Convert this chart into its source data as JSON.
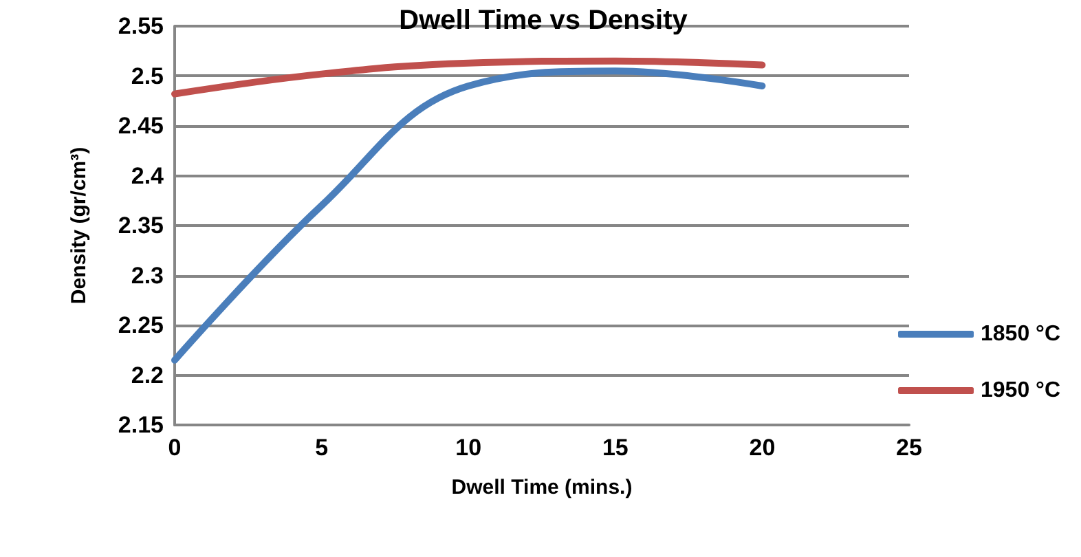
{
  "chart_data": {
    "type": "line",
    "title": "Dwell Time vs Density",
    "xlabel": "Dwell Time (mins.)",
    "ylabel": "Density (gr/cm³)",
    "x": [
      0,
      5,
      10,
      15,
      20
    ],
    "series": [
      {
        "name": "1850 °C",
        "color": "#4a7ebb",
        "values": [
          2.215,
          2.37,
          2.49,
          2.505,
          2.49
        ]
      },
      {
        "name": "1950 °C",
        "color": "#c0504d",
        "values": [
          2.482,
          2.502,
          2.513,
          2.515,
          2.511
        ]
      }
    ],
    "xlim": [
      0,
      25
    ],
    "xticks": [
      0,
      5,
      10,
      15,
      20,
      25
    ],
    "ylim": [
      2.15,
      2.55
    ],
    "yticks": [
      2.15,
      2.2,
      2.25,
      2.3,
      2.35,
      2.4,
      2.45,
      2.5,
      2.55
    ],
    "grid": "y",
    "legend": "right",
    "marker": "none",
    "line_style": "solid"
  }
}
